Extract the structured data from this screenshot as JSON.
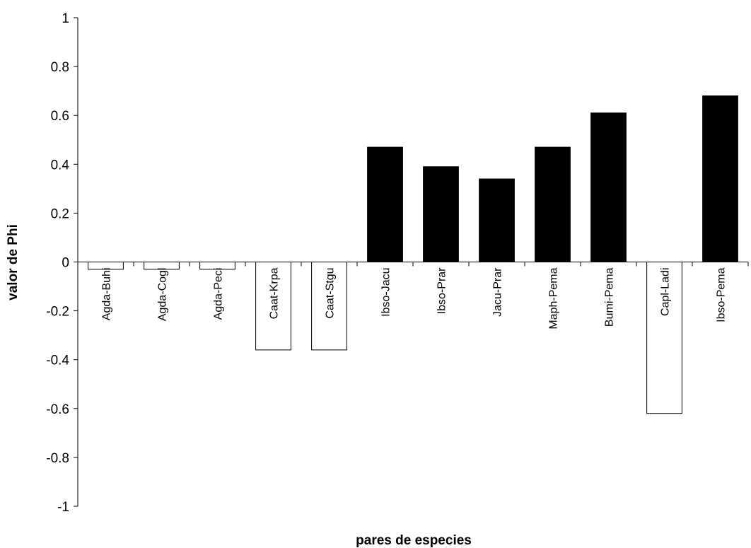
{
  "chart_data": {
    "type": "bar",
    "xlabel": "pares de especies",
    "ylabel": "valor de Phi",
    "ylim": [
      -1,
      1
    ],
    "yticks": [
      1,
      0.8,
      0.6,
      0.4,
      0.2,
      0,
      -0.2,
      -0.4,
      -0.6,
      -0.8,
      -1
    ],
    "ytick_labels": [
      "1",
      "0.8",
      "0.6",
      "0.4",
      "0.2",
      "0",
      "-0.2",
      "-0.4",
      "-0.6",
      "-0.8",
      "-1"
    ],
    "categories": [
      "Agda-Buhi",
      "Agda-Cogl",
      "Agda-Peci",
      "Caat-Krpa",
      "Caat-Stgu",
      "Ibso-Jacu",
      "Ibso-Prar",
      "Jacu-Prar",
      "Maph-Pema",
      "Bumi-Pema",
      "Capl-Ladi",
      "Ibso-Pema"
    ],
    "values": [
      -0.03,
      -0.03,
      -0.03,
      -0.36,
      -0.36,
      0.47,
      0.39,
      0.34,
      0.47,
      0.61,
      -0.62,
      0.68
    ],
    "bar_fill_positive": "#000000",
    "bar_fill_negative": "#ffffff",
    "grid": false,
    "legend": "none"
  }
}
